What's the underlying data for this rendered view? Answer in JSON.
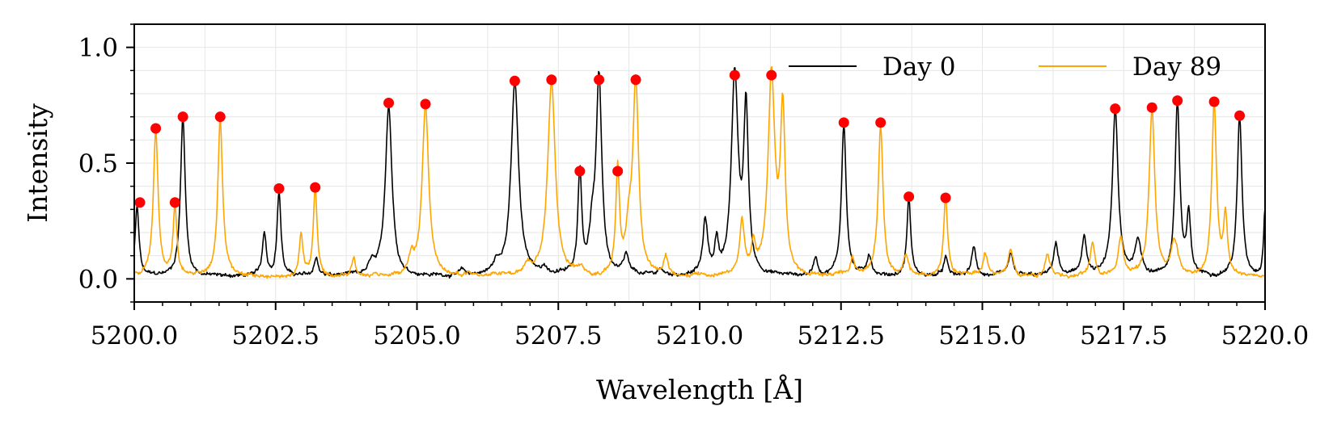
{
  "chart_data": {
    "type": "line",
    "xlabel": "Wavelength [Å]",
    "ylabel": "Intensity",
    "xlim": [
      5200.0,
      5220.0
    ],
    "ylim": [
      -0.1,
      1.1
    ],
    "xticks": [
      5200.0,
      5202.5,
      5205.0,
      5207.5,
      5210.0,
      5212.5,
      5215.0,
      5217.5,
      5220.0
    ],
    "xtick_labels": [
      "5200.0",
      "5202.5",
      "5205.0",
      "5207.5",
      "5210.0",
      "5212.5",
      "5215.0",
      "5217.5",
      "5220.0"
    ],
    "yticks": [
      0.0,
      0.5,
      1.0
    ],
    "ytick_labels": [
      "0.0",
      "0.5",
      "1.0"
    ],
    "grid": true,
    "legend": {
      "placement": "upper-right",
      "columns": 2
    },
    "series": [
      {
        "name": "Day 0",
        "color": "#000000",
        "baseline": 0.01,
        "peaks": [
          {
            "c": 5200.05,
            "h": 0.3,
            "w": 0.04
          },
          {
            "c": 5200.86,
            "h": 0.69,
            "w": 0.05
          },
          {
            "c": 5202.3,
            "h": 0.19,
            "w": 0.04
          },
          {
            "c": 5202.56,
            "h": 0.37,
            "w": 0.04
          },
          {
            "c": 5203.22,
            "h": 0.08,
            "w": 0.04
          },
          {
            "c": 5204.2,
            "h": 0.05,
            "w": 0.05
          },
          {
            "c": 5204.5,
            "h": 0.74,
            "w": 0.07
          },
          {
            "c": 5205.8,
            "h": 0.02,
            "w": 0.05
          },
          {
            "c": 5206.4,
            "h": 0.04,
            "w": 0.06
          },
          {
            "c": 5206.73,
            "h": 0.84,
            "w": 0.08
          },
          {
            "c": 5207.25,
            "h": 0.03,
            "w": 0.05
          },
          {
            "c": 5207.88,
            "h": 0.45,
            "w": 0.04
          },
          {
            "c": 5208.1,
            "h": 0.16,
            "w": 0.06
          },
          {
            "c": 5208.22,
            "h": 0.84,
            "w": 0.06
          },
          {
            "c": 5208.7,
            "h": 0.08,
            "w": 0.05
          },
          {
            "c": 5209.3,
            "h": 0.03,
            "w": 0.05
          },
          {
            "c": 5210.1,
            "h": 0.23,
            "w": 0.05
          },
          {
            "c": 5210.3,
            "h": 0.13,
            "w": 0.04
          },
          {
            "c": 5210.62,
            "h": 0.86,
            "w": 0.07
          },
          {
            "c": 5210.82,
            "h": 0.7,
            "w": 0.05
          },
          {
            "c": 5212.05,
            "h": 0.08,
            "w": 0.04
          },
          {
            "c": 5212.55,
            "h": 0.66,
            "w": 0.05
          },
          {
            "c": 5213.0,
            "h": 0.09,
            "w": 0.05
          },
          {
            "c": 5213.7,
            "h": 0.34,
            "w": 0.04
          },
          {
            "c": 5214.35,
            "h": 0.08,
            "w": 0.04
          },
          {
            "c": 5214.85,
            "h": 0.12,
            "w": 0.05
          },
          {
            "c": 5215.5,
            "h": 0.09,
            "w": 0.05
          },
          {
            "c": 5216.3,
            "h": 0.14,
            "w": 0.05
          },
          {
            "c": 5216.8,
            "h": 0.17,
            "w": 0.05
          },
          {
            "c": 5217.35,
            "h": 0.72,
            "w": 0.06
          },
          {
            "c": 5217.75,
            "h": 0.15,
            "w": 0.07
          },
          {
            "c": 5218.45,
            "h": 0.75,
            "w": 0.05
          },
          {
            "c": 5218.65,
            "h": 0.25,
            "w": 0.04
          },
          {
            "c": 5219.55,
            "h": 0.69,
            "w": 0.05
          },
          {
            "c": 5220.0,
            "h": 0.3,
            "w": 0.03
          }
        ],
        "markers": [
          {
            "x": 5200.1,
            "y": 0.33
          },
          {
            "x": 5200.86,
            "y": 0.7
          },
          {
            "x": 5202.56,
            "y": 0.39
          },
          {
            "x": 5204.5,
            "y": 0.76
          },
          {
            "x": 5206.73,
            "y": 0.855
          },
          {
            "x": 5207.88,
            "y": 0.465
          },
          {
            "x": 5208.22,
            "y": 0.86
          },
          {
            "x": 5210.62,
            "y": 0.88
          },
          {
            "x": 5212.55,
            "y": 0.675
          },
          {
            "x": 5213.7,
            "y": 0.355
          },
          {
            "x": 5217.35,
            "y": 0.735
          },
          {
            "x": 5218.45,
            "y": 0.77
          },
          {
            "x": 5219.55,
            "y": 0.705
          }
        ]
      },
      {
        "name": "Day 89",
        "color": "#FFA500",
        "baseline": 0.01,
        "peaks": [
          {
            "c": 5200.38,
            "h": 0.63,
            "w": 0.05
          },
          {
            "c": 5200.72,
            "h": 0.3,
            "w": 0.04
          },
          {
            "c": 5201.52,
            "h": 0.69,
            "w": 0.05
          },
          {
            "c": 5202.95,
            "h": 0.18,
            "w": 0.04
          },
          {
            "c": 5203.2,
            "h": 0.37,
            "w": 0.04
          },
          {
            "c": 5203.88,
            "h": 0.08,
            "w": 0.04
          },
          {
            "c": 5204.9,
            "h": 0.07,
            "w": 0.05
          },
          {
            "c": 5205.15,
            "h": 0.74,
            "w": 0.07
          },
          {
            "c": 5206.95,
            "h": 0.04,
            "w": 0.06
          },
          {
            "c": 5207.38,
            "h": 0.84,
            "w": 0.08
          },
          {
            "c": 5207.9,
            "h": 0.03,
            "w": 0.05
          },
          {
            "c": 5208.55,
            "h": 0.45,
            "w": 0.04
          },
          {
            "c": 5208.75,
            "h": 0.16,
            "w": 0.06
          },
          {
            "c": 5208.87,
            "h": 0.84,
            "w": 0.06
          },
          {
            "c": 5209.4,
            "h": 0.08,
            "w": 0.05
          },
          {
            "c": 5210.75,
            "h": 0.23,
            "w": 0.05
          },
          {
            "c": 5210.95,
            "h": 0.13,
            "w": 0.04
          },
          {
            "c": 5211.27,
            "h": 0.86,
            "w": 0.07
          },
          {
            "c": 5211.47,
            "h": 0.7,
            "w": 0.05
          },
          {
            "c": 5212.7,
            "h": 0.08,
            "w": 0.04
          },
          {
            "c": 5213.2,
            "h": 0.66,
            "w": 0.05
          },
          {
            "c": 5213.65,
            "h": 0.09,
            "w": 0.05
          },
          {
            "c": 5214.35,
            "h": 0.34,
            "w": 0.04
          },
          {
            "c": 5215.05,
            "h": 0.1,
            "w": 0.05
          },
          {
            "c": 5215.5,
            "h": 0.12,
            "w": 0.05
          },
          {
            "c": 5216.15,
            "h": 0.09,
            "w": 0.05
          },
          {
            "c": 5216.95,
            "h": 0.14,
            "w": 0.05
          },
          {
            "c": 5217.45,
            "h": 0.17,
            "w": 0.05
          },
          {
            "c": 5218.0,
            "h": 0.72,
            "w": 0.06
          },
          {
            "c": 5218.4,
            "h": 0.15,
            "w": 0.07
          },
          {
            "c": 5219.1,
            "h": 0.75,
            "w": 0.05
          },
          {
            "c": 5219.3,
            "h": 0.25,
            "w": 0.04
          }
        ],
        "markers": [
          {
            "x": 5200.38,
            "y": 0.65
          },
          {
            "x": 5200.72,
            "y": 0.33
          },
          {
            "x": 5201.52,
            "y": 0.7
          },
          {
            "x": 5203.2,
            "y": 0.395
          },
          {
            "x": 5205.15,
            "y": 0.755
          },
          {
            "x": 5207.38,
            "y": 0.86
          },
          {
            "x": 5208.55,
            "y": 0.465
          },
          {
            "x": 5208.87,
            "y": 0.86
          },
          {
            "x": 5211.27,
            "y": 0.88
          },
          {
            "x": 5213.2,
            "y": 0.675
          },
          {
            "x": 5214.35,
            "y": 0.35
          },
          {
            "x": 5218.0,
            "y": 0.74
          },
          {
            "x": 5219.1,
            "y": 0.765
          }
        ]
      }
    ],
    "marker_color": "#FF0000"
  }
}
